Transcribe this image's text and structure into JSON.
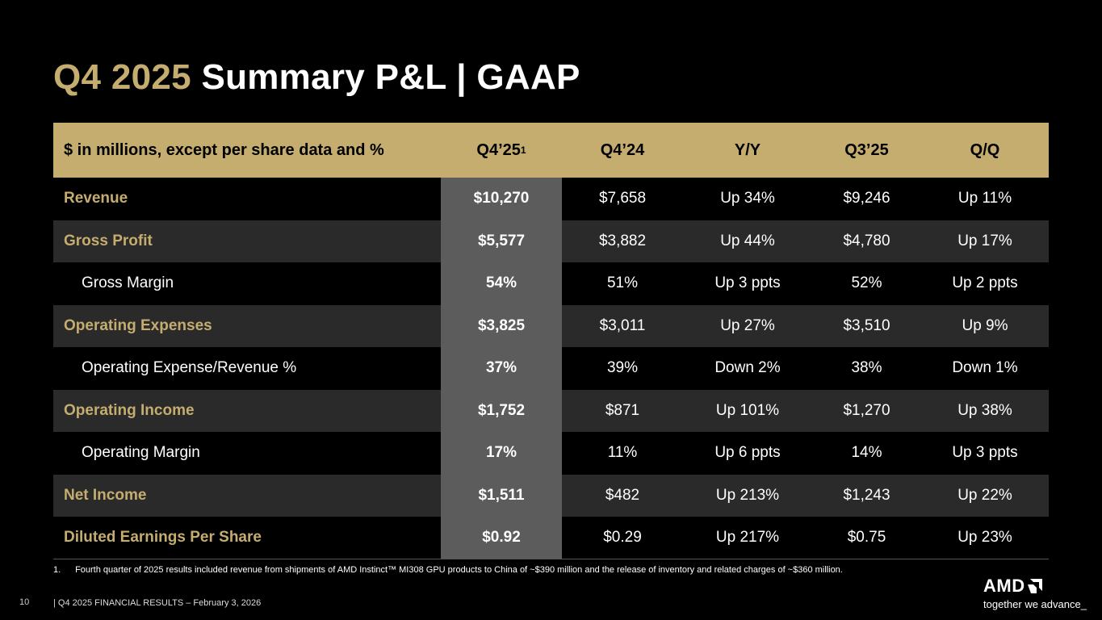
{
  "title": {
    "gold": "Q4 2025",
    "white": "Summary P&L  |  GAAP"
  },
  "table": {
    "headers": [
      "$ in millions, except per share data and %",
      "Q4’25",
      "Q4’24",
      "Y/Y",
      "Q3’25",
      "Q/Q"
    ],
    "header_sup": "1",
    "rows": [
      {
        "label": "Revenue",
        "values": [
          "$10,270",
          "$7,658",
          "Up 34%",
          "$9,246",
          "Up 11%"
        ]
      },
      {
        "label": "Gross Profit",
        "values": [
          "$5,577",
          "$3,882",
          "Up 44%",
          "$4,780",
          "Up 17%"
        ]
      },
      {
        "label": "Gross Margin",
        "values": [
          "54%",
          "51%",
          "Up 3 ppts",
          "52%",
          "Up 2 ppts"
        ]
      },
      {
        "label": "Operating Expenses",
        "values": [
          "$3,825",
          "$3,011",
          "Up 27%",
          "$3,510",
          "Up 9%"
        ]
      },
      {
        "label": "Operating Expense/Revenue %",
        "values": [
          "37%",
          "39%",
          "Down 2%",
          "38%",
          "Down 1%"
        ]
      },
      {
        "label": "Operating Income",
        "values": [
          "$1,752",
          "$871",
          "Up 101%",
          "$1,270",
          "Up 38%"
        ]
      },
      {
        "label": "Operating Margin",
        "values": [
          "17%",
          "11%",
          "Up 6 ppts",
          "14%",
          "Up 3 ppts"
        ]
      },
      {
        "label": "Net Income",
        "values": [
          "$1,511",
          "$482",
          "Up 213%",
          "$1,243",
          "Up 22%"
        ]
      },
      {
        "label": "Diluted Earnings Per Share",
        "values": [
          "$0.92",
          "$0.29",
          "Up 217%",
          "$0.75",
          "Up 23%"
        ]
      }
    ]
  },
  "footnote": {
    "number": "1.",
    "text": "Fourth quarter of 2025 results included revenue from shipments of AMD Instinct™ MI308 GPU products to China of ~$390 million and the release of inventory and related charges of ~$360 million."
  },
  "footer": {
    "page_number": "10",
    "text": "|  Q4 2025 FINANCIAL RESULTS – February 3, 2026"
  },
  "logo": {
    "word": "AMD",
    "tagline": "together we advance_"
  },
  "colors": {
    "gold": "#c4ad6e",
    "background": "#000000",
    "highlight_column": "#5c5c5c",
    "shaded_row": "#2a2a2a"
  }
}
